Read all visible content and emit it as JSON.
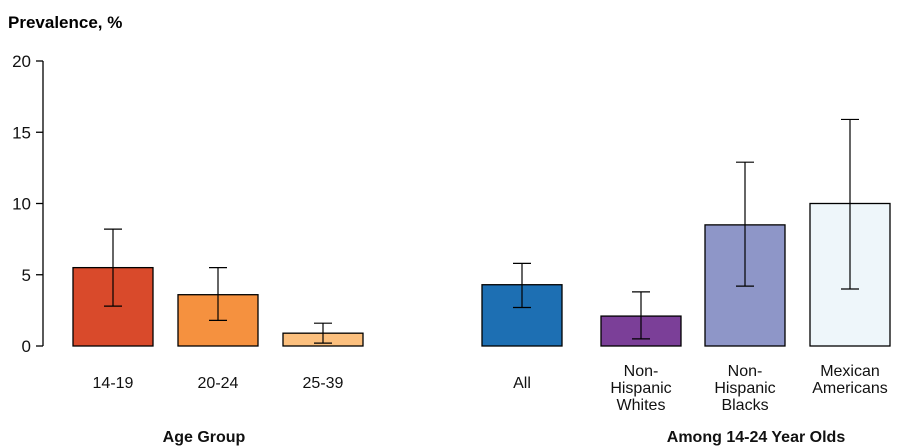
{
  "chart_data": {
    "type": "bar",
    "ylabel": "Prevalence, %",
    "ylim": [
      0,
      20
    ],
    "yticks": [
      0,
      5,
      10,
      15,
      20
    ],
    "grid": false,
    "groups": [
      {
        "label": "Age Group",
        "bars": [
          {
            "category": [
              "14-19"
            ],
            "value": 5.5,
            "ci": [
              2.8,
              8.2
            ],
            "color": "#d94a2b"
          },
          {
            "category": [
              "20-24"
            ],
            "value": 3.6,
            "ci": [
              1.8,
              5.5
            ],
            "color": "#f5913f"
          },
          {
            "category": [
              "25-39"
            ],
            "value": 0.9,
            "ci": [
              0.2,
              1.6
            ],
            "color": "#fcc07e"
          }
        ]
      },
      {
        "label": "Among 14-24 Year Olds",
        "bars": [
          {
            "category": [
              "All"
            ],
            "value": 4.3,
            "ci": [
              2.7,
              5.8
            ],
            "color": "#1d6fb3"
          },
          {
            "category": [
              "Non-",
              "Hispanic",
              "Whites"
            ],
            "value": 2.1,
            "ci": [
              0.5,
              3.8
            ],
            "color": "#7b3f98"
          },
          {
            "category": [
              "Non-",
              "Hispanic",
              "Blacks"
            ],
            "value": 8.5,
            "ci": [
              4.2,
              12.9
            ],
            "color": "#8e96c8"
          },
          {
            "category": [
              "Mexican",
              "Americans"
            ],
            "value": 10.0,
            "ci": [
              4.0,
              15.9
            ],
            "color": "#eef6fa"
          }
        ]
      }
    ]
  }
}
